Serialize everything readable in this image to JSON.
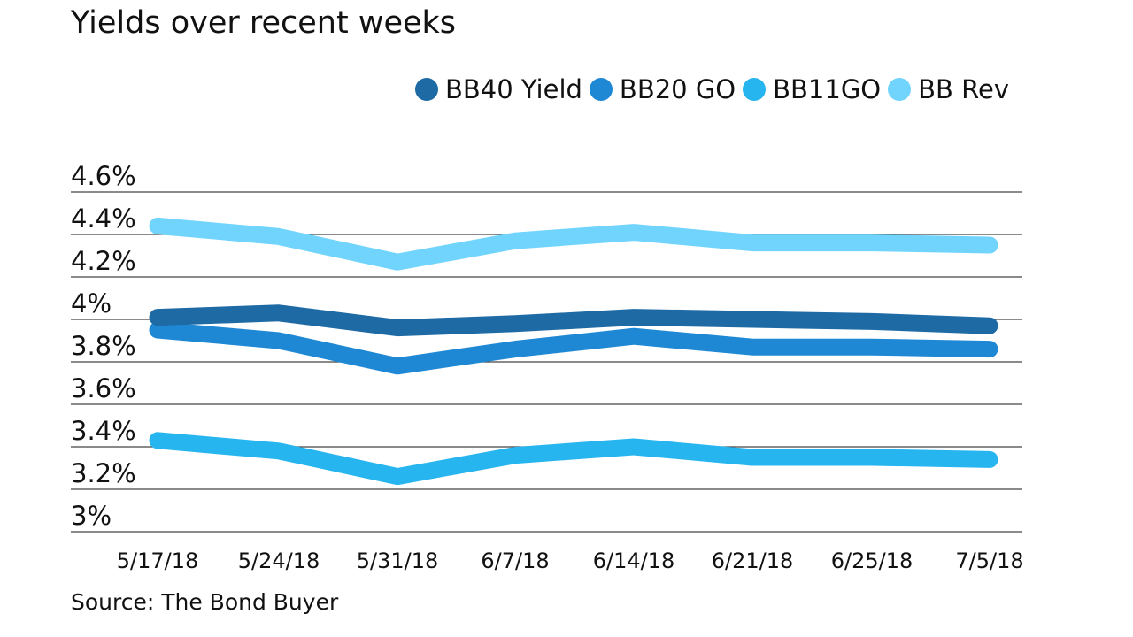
{
  "chart_data": {
    "type": "line",
    "title": "",
    "subtitle": "Yields over recent weeks",
    "source": "Source: The Bond Buyer",
    "categories": [
      "5/17/18",
      "5/24/18",
      "5/31/18",
      "6/7/18",
      "6/14/18",
      "6/21/18",
      "6/25/18",
      "7/5/18"
    ],
    "y_ticks": [
      {
        "v": 4.6,
        "label": "4.6%"
      },
      {
        "v": 4.4,
        "label": "4.4%"
      },
      {
        "v": 4.2,
        "label": "4.2%"
      },
      {
        "v": 4.0,
        "label": "4%"
      },
      {
        "v": 3.8,
        "label": "3.8%"
      },
      {
        "v": 3.6,
        "label": "3.6%"
      },
      {
        "v": 3.4,
        "label": "3.4%"
      },
      {
        "v": 3.2,
        "label": "3.2%"
      },
      {
        "v": 3.0,
        "label": "3%"
      }
    ],
    "ylim": [
      3.0,
      4.6
    ],
    "grid": true,
    "legend_position": "top-right",
    "series": [
      {
        "name": "BB40 Yield",
        "color": "#1d6aa5",
        "values": [
          4.01,
          4.03,
          3.96,
          3.98,
          4.01,
          4.0,
          3.99,
          3.97
        ]
      },
      {
        "name": "BB20 GO",
        "color": "#1e88d4",
        "values": [
          3.95,
          3.9,
          3.78,
          3.86,
          3.92,
          3.87,
          3.87,
          3.86
        ]
      },
      {
        "name": "BB11GO",
        "color": "#27b5ef",
        "values": [
          3.43,
          3.38,
          3.26,
          3.36,
          3.4,
          3.35,
          3.35,
          3.34
        ]
      },
      {
        "name": "BB Rev",
        "color": "#70d4fd",
        "values": [
          4.44,
          4.39,
          4.27,
          4.37,
          4.41,
          4.36,
          4.36,
          4.35
        ]
      }
    ]
  }
}
